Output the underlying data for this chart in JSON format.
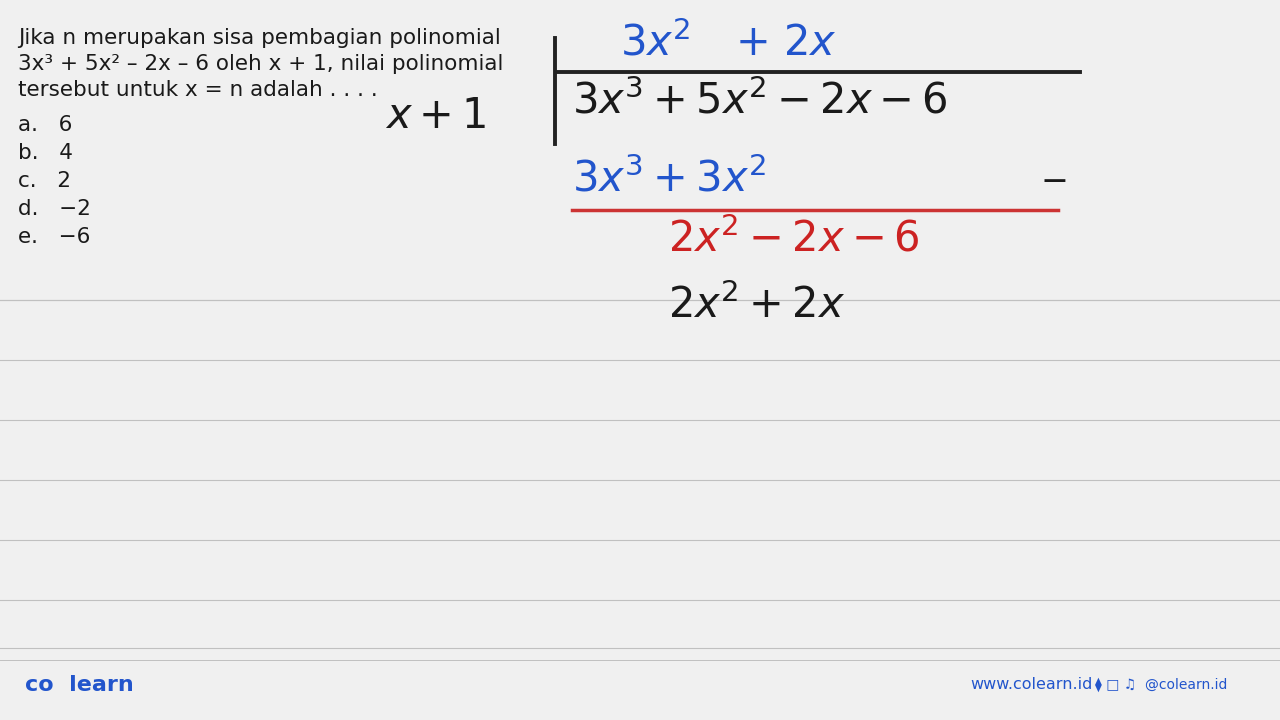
{
  "bg_color": "#f0f0f0",
  "text_color_black": "#1a1a1a",
  "text_color_blue": "#2255cc",
  "text_color_red": "#cc2222",
  "problem_line1": "Jika n merupakan sisa pembagian polinomial",
  "problem_line2": "3x³ + 5x² – 2x – 6 oleh x + 1, nilai polinomial",
  "problem_line3": "tersebut untuk x = n adalah . . . .",
  "choices": [
    "a.   6",
    "b.   4",
    "c.   2",
    "d.   −2",
    "e.   −6"
  ],
  "footer_left": "co  learn",
  "footer_right": "www.colearn.id",
  "footer_social": "@colearn.id",
  "gray_line_color": "#c0c0c0",
  "line_color_red": "#cc3333",
  "line_color_black": "#222222",
  "fs_prob": 15.5,
  "fs_div": 30,
  "fs_footer": 14
}
